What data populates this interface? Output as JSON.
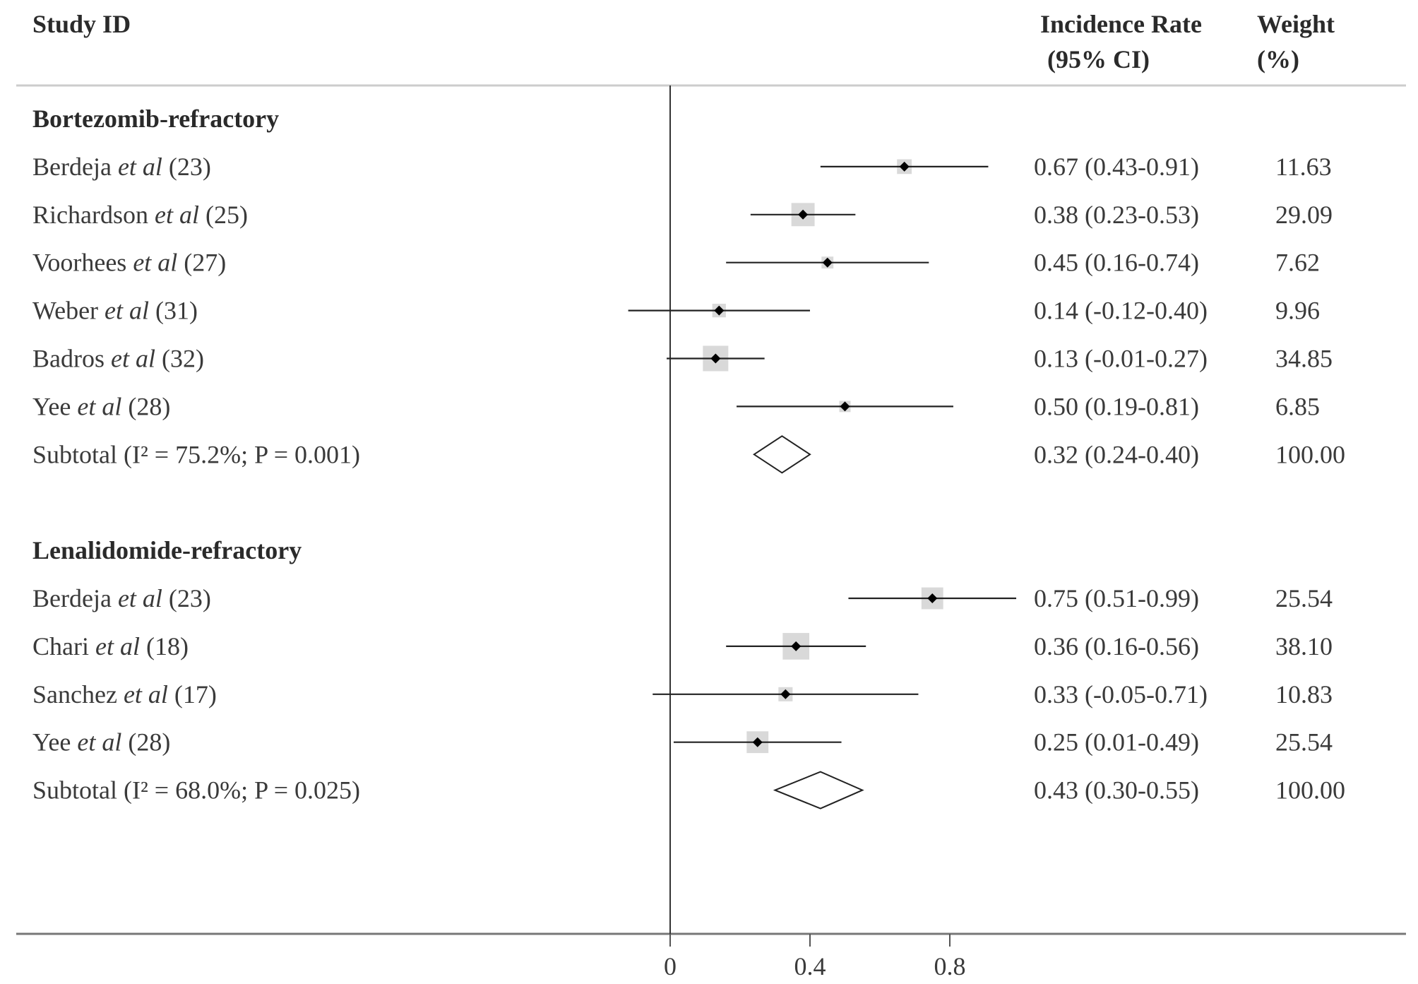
{
  "chart_data": {
    "type": "forest",
    "headers": {
      "study": "Study ID",
      "estimate_line1": "Incidence Rate",
      "estimate_line2": "(95% CI)",
      "weight_line1": "Weight",
      "weight_line2": "(%)"
    },
    "x_ticks": [
      0,
      0.4,
      0.8
    ],
    "x_tick_labels": [
      "0",
      "0.4",
      "0.8"
    ],
    "xlim": [
      -0.54,
      2.11
    ],
    "groups": [
      {
        "name": "Bortezomib-refractory",
        "studies": [
          {
            "author": "Berdeja",
            "etal": "et al",
            "ref": "(23)",
            "est": 0.67,
            "lo": 0.43,
            "hi": 0.91,
            "ci_text": "0.67 (0.43-0.91)",
            "weight": "11.63"
          },
          {
            "author": "Richardson",
            "etal": "et al",
            "ref": "(25)",
            "est": 0.38,
            "lo": 0.23,
            "hi": 0.53,
            "ci_text": "0.38 (0.23-0.53)",
            "weight": "29.09"
          },
          {
            "author": "Voorhees",
            "etal": "et al",
            "ref": "(27)",
            "est": 0.45,
            "lo": 0.16,
            "hi": 0.74,
            "ci_text": "0.45 (0.16-0.74)",
            "weight": "7.62"
          },
          {
            "author": "Weber",
            "etal": "et al",
            "ref": "(31)",
            "est": 0.14,
            "lo": -0.12,
            "hi": 0.4,
            "ci_text": "0.14 (-0.12-0.40)",
            "weight": "9.96"
          },
          {
            "author": "Badros",
            "etal": "et al",
            "ref": "(32)",
            "est": 0.13,
            "lo": -0.01,
            "hi": 0.27,
            "ci_text": "0.13 (-0.01-0.27)",
            "weight": "34.85"
          },
          {
            "author": "Yee",
            "etal": "et al",
            "ref": "(28)",
            "est": 0.5,
            "lo": 0.19,
            "hi": 0.81,
            "ci_text": "0.50 (0.19-0.81)",
            "weight": "6.85"
          }
        ],
        "subtotal": {
          "label": "Subtotal  (I² = 75.2%; P = 0.001)",
          "est": 0.32,
          "lo": 0.24,
          "hi": 0.4,
          "ci_text": "0.32 (0.24-0.40)",
          "weight": "100.00"
        }
      },
      {
        "name": "Lenalidomide-refractory",
        "studies": [
          {
            "author": "Berdeja",
            "etal": "et al",
            "ref": "(23)",
            "est": 0.75,
            "lo": 0.51,
            "hi": 0.99,
            "ci_text": "0.75 (0.51-0.99)",
            "weight": "25.54"
          },
          {
            "author": "Chari",
            "etal": "et al",
            "ref": "(18)",
            "est": 0.36,
            "lo": 0.16,
            "hi": 0.56,
            "ci_text": "0.36 (0.16-0.56)",
            "weight": "38.10"
          },
          {
            "author": "Sanchez",
            "etal": "et al",
            "ref": "(17)",
            "est": 0.33,
            "lo": -0.05,
            "hi": 0.71,
            "ci_text": "0.33 (-0.05-0.71)",
            "weight": "10.83"
          },
          {
            "author": "Yee",
            "etal": "et al",
            "ref": "(28)",
            "est": 0.25,
            "lo": 0.01,
            "hi": 0.49,
            "ci_text": "0.25 (0.01-0.49)",
            "weight": "25.54"
          }
        ],
        "subtotal": {
          "label": "Subtotal  (I² = 68.0%; P = 0.025)",
          "est": 0.43,
          "lo": 0.3,
          "hi": 0.55,
          "ci_text": "0.43 (0.30-0.55)",
          "weight": "100.00"
        }
      }
    ],
    "colors": {
      "box": "#d9d9d9",
      "line": "#222222",
      "text": "#3a3a3a"
    }
  }
}
